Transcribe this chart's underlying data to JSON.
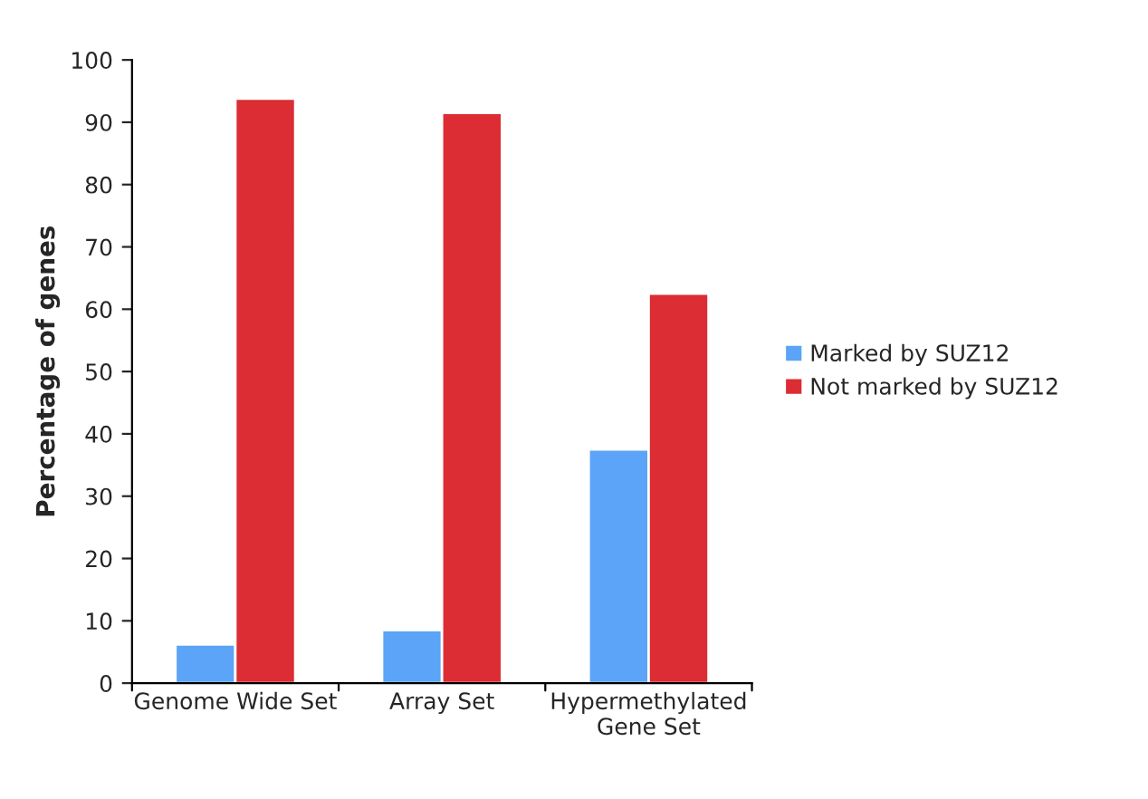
{
  "chart_data": {
    "type": "bar",
    "ylabel": "Percentage of genes",
    "categories": [
      "Genome Wide Set",
      "Array Set",
      "Hypermethylated\nGene Set"
    ],
    "series": [
      {
        "name": "Marked by SUZ12",
        "color": "#5ba4f7",
        "values": [
          6.2,
          8.5,
          37.5
        ]
      },
      {
        "name": "Not marked by SUZ12",
        "color": "#dc2c34",
        "values": [
          93.8,
          91.5,
          62.5
        ]
      }
    ],
    "ylim": [
      0,
      100
    ],
    "yticks": [
      0,
      10,
      20,
      30,
      40,
      50,
      60,
      70,
      80,
      90,
      100
    ],
    "grid": false,
    "legend": "right"
  }
}
